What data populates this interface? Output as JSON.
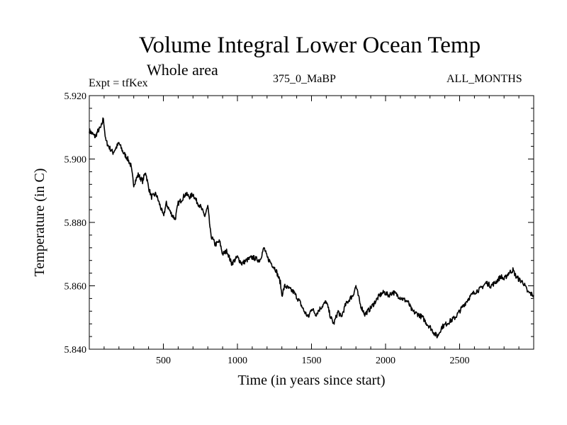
{
  "header": {
    "title": "Volume Integral Lower Ocean Temp",
    "subtitle": "Whole area",
    "left_label": "Expt = tfKex",
    "center_label": "375_0_MaBP",
    "right_label": "ALL_MONTHS"
  },
  "chart_data": {
    "type": "line",
    "title": "Volume Integral Lower Ocean Temp",
    "subtitle": "Whole area",
    "xlabel": "Time (in years since start)",
    "ylabel": "Temperature (in C)",
    "xlim": [
      0,
      3000
    ],
    "ylim": [
      5.84,
      5.92
    ],
    "xticks": [
      500,
      1000,
      1500,
      2000,
      2500
    ],
    "xtick_labels": [
      "500",
      "1000",
      "1500",
      "2000",
      "2500"
    ],
    "yticks": [
      5.84,
      5.86,
      5.88,
      5.9,
      5.92
    ],
    "ytick_labels": [
      "5.840",
      "5.860",
      "5.880",
      "5.900",
      "5.920"
    ],
    "grid": false,
    "series": [
      {
        "x": [
          0,
          20,
          40,
          60,
          80,
          95,
          110,
          130,
          160,
          200,
          230,
          260,
          280,
          300,
          330,
          360,
          380,
          400,
          420,
          450,
          480,
          500,
          520,
          550,
          580,
          600,
          620,
          650,
          680,
          700,
          720,
          750,
          780,
          800,
          820,
          850,
          880,
          900,
          930,
          960,
          1000,
          1030,
          1060,
          1100,
          1150,
          1180,
          1200,
          1230,
          1260,
          1290,
          1300,
          1320,
          1350,
          1380,
          1420,
          1450,
          1480,
          1500,
          1530,
          1560,
          1600,
          1630,
          1650,
          1680,
          1700,
          1730,
          1760,
          1780,
          1800,
          1830,
          1860,
          1880,
          1900,
          1930,
          1960,
          1990,
          2020,
          2050,
          2080,
          2110,
          2150,
          2180,
          2220,
          2250,
          2280,
          2300,
          2330,
          2350,
          2380,
          2410,
          2440,
          2470,
          2500,
          2530,
          2560,
          2600,
          2640,
          2680,
          2710,
          2740,
          2780,
          2800,
          2830,
          2860,
          2880,
          2900,
          2930,
          2960,
          3000
        ],
        "y": [
          5.909,
          5.908,
          5.907,
          5.909,
          5.91,
          5.913,
          5.906,
          5.904,
          5.902,
          5.905,
          5.902,
          5.9,
          5.898,
          5.892,
          5.895,
          5.893,
          5.896,
          5.891,
          5.888,
          5.889,
          5.885,
          5.882,
          5.886,
          5.883,
          5.881,
          5.886,
          5.887,
          5.889,
          5.888,
          5.889,
          5.887,
          5.885,
          5.882,
          5.885,
          5.876,
          5.873,
          5.874,
          5.87,
          5.871,
          5.867,
          5.869,
          5.867,
          5.868,
          5.869,
          5.868,
          5.872,
          5.869,
          5.867,
          5.865,
          5.861,
          5.857,
          5.86,
          5.859,
          5.858,
          5.855,
          5.852,
          5.85,
          5.853,
          5.851,
          5.853,
          5.855,
          5.85,
          5.848,
          5.852,
          5.85,
          5.854,
          5.856,
          5.857,
          5.86,
          5.854,
          5.851,
          5.852,
          5.853,
          5.855,
          5.857,
          5.858,
          5.857,
          5.858,
          5.857,
          5.856,
          5.855,
          5.852,
          5.851,
          5.85,
          5.848,
          5.847,
          5.845,
          5.844,
          5.847,
          5.848,
          5.849,
          5.85,
          5.852,
          5.854,
          5.856,
          5.858,
          5.859,
          5.861,
          5.86,
          5.861,
          5.863,
          5.862,
          5.864,
          5.865,
          5.863,
          5.862,
          5.861,
          5.858,
          5.857
        ]
      }
    ]
  }
}
